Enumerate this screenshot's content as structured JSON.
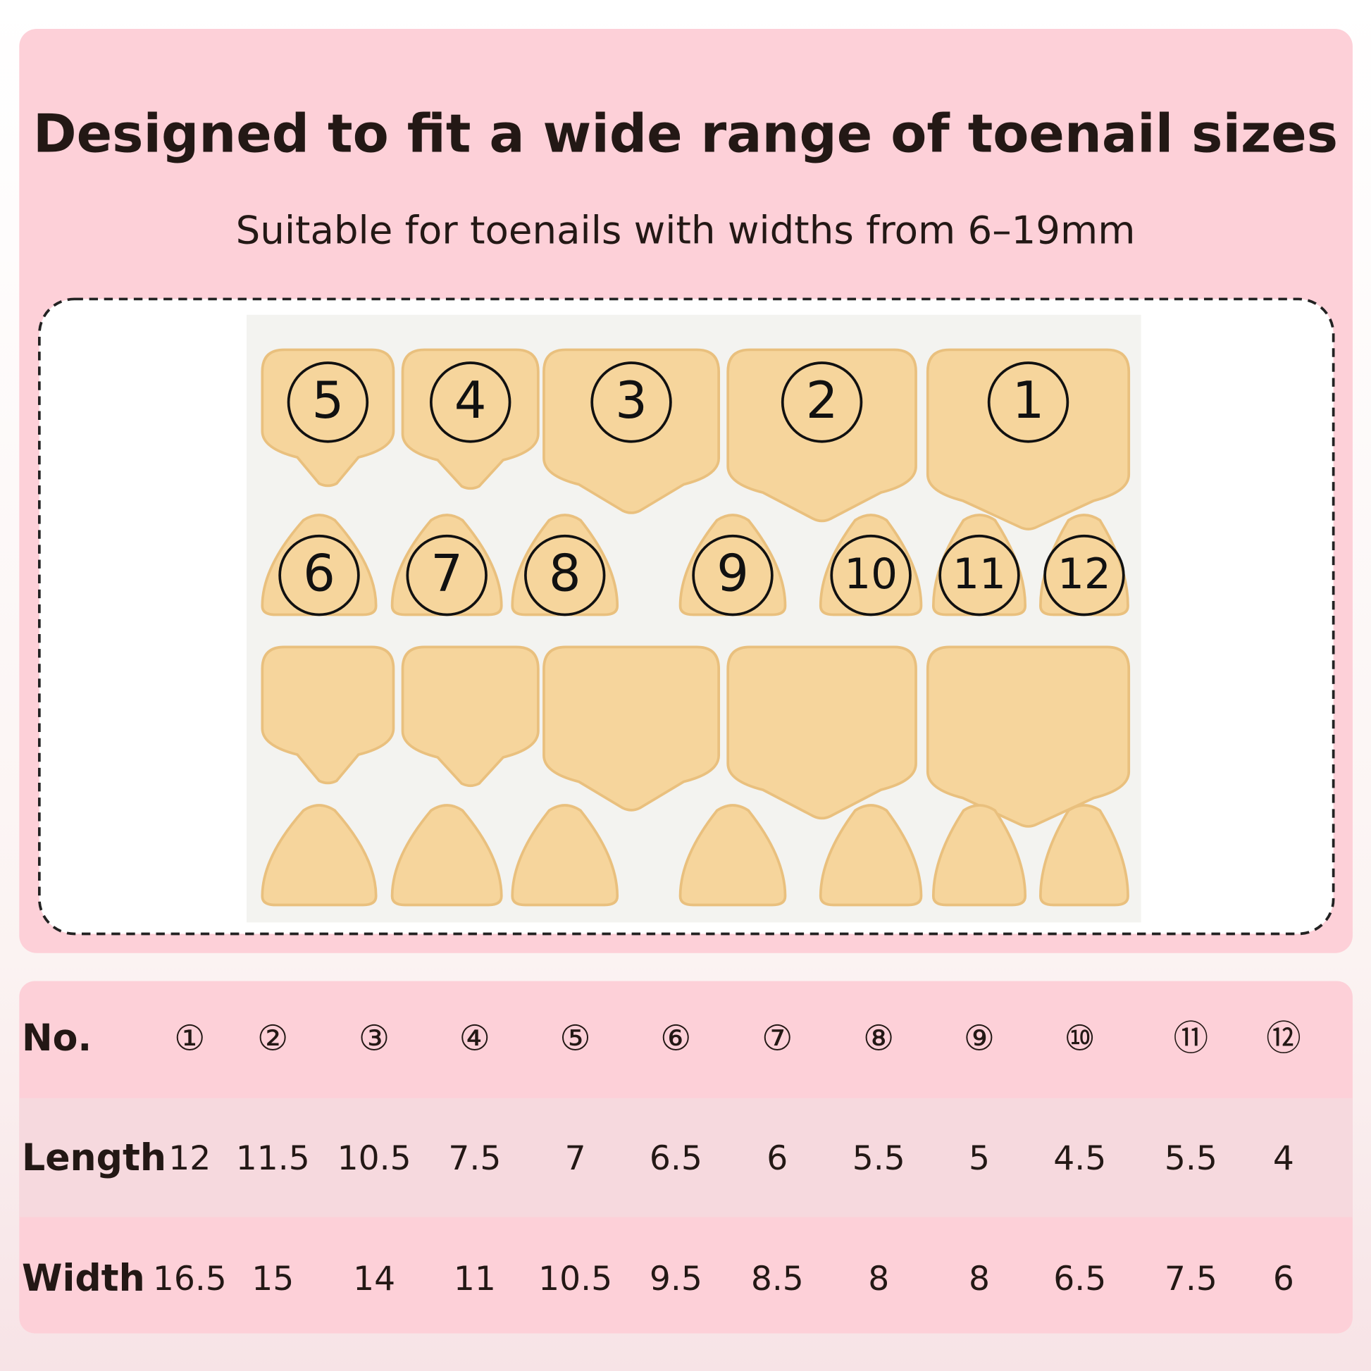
{
  "header": {
    "title": "Designed to fit a wide range of toenail sizes",
    "subtitle": "Suitable for toenails with widths from 6–19mm"
  },
  "stickers": {
    "top_row": [
      "5",
      "4",
      "3",
      "2",
      "1"
    ],
    "middle_row": [
      "6",
      "7",
      "8",
      "9",
      "10",
      "11",
      "12"
    ]
  },
  "table": {
    "rows": [
      {
        "label": "No.",
        "cells": [
          "①",
          "②",
          "③",
          "④",
          "⑤",
          "⑥",
          "⑦",
          "⑧",
          "⑨",
          "⑩",
          "⑪",
          "⑫"
        ]
      },
      {
        "label": "Length",
        "cells": [
          "12",
          "11.5",
          "10.5",
          "7.5",
          "7",
          "6.5",
          "6",
          "5.5",
          "5",
          "4.5",
          "5.5",
          "4"
        ]
      },
      {
        "label": "Width",
        "cells": [
          "16.5",
          "15",
          "14",
          "11",
          "10.5",
          "9.5",
          "8.5",
          "8",
          "8",
          "6.5",
          "7.5",
          "6"
        ]
      }
    ]
  }
}
